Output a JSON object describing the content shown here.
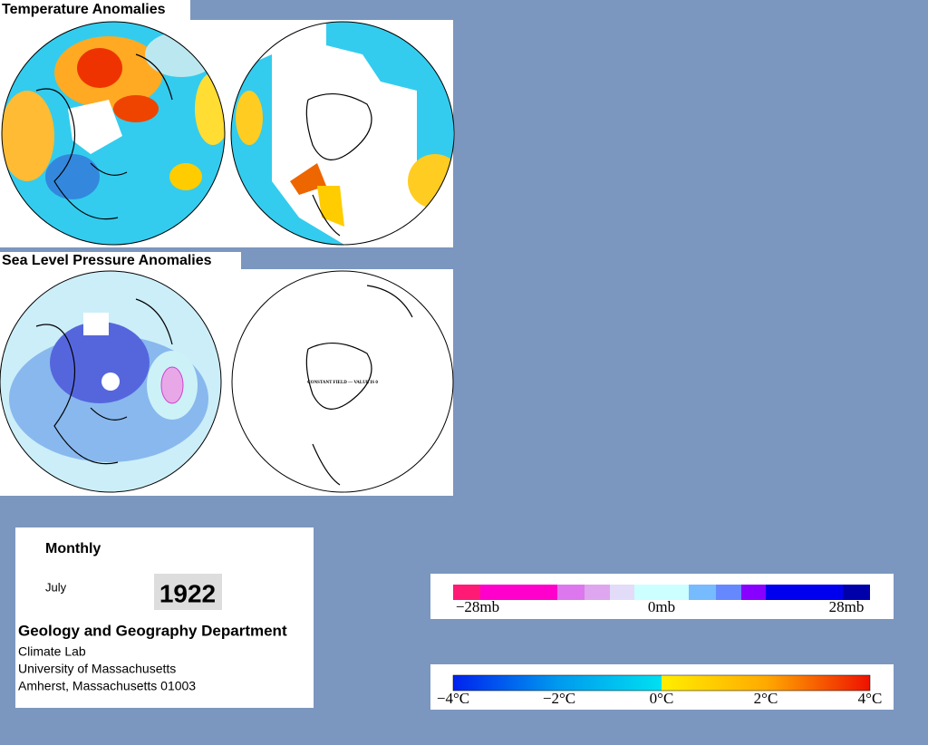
{
  "temperature": {
    "title": "Temperature Anomalies",
    "scale_labels": [
      "−4°C",
      "−2°C",
      "0°C",
      "2°C",
      "4°C"
    ]
  },
  "pressure": {
    "title": "Sea Level Pressure Anomalies",
    "annotation": "CONSTANT FIELD — VALUE IS 0",
    "scale_labels": [
      "−28mb",
      "0mb",
      "28mb"
    ]
  },
  "info": {
    "period": "Monthly",
    "month": "July",
    "year": "1922",
    "department": "Geology and Geography Department",
    "address": [
      "Climate Lab",
      "University of Massachusetts",
      "Amherst, Massachusetts 01003"
    ]
  }
}
